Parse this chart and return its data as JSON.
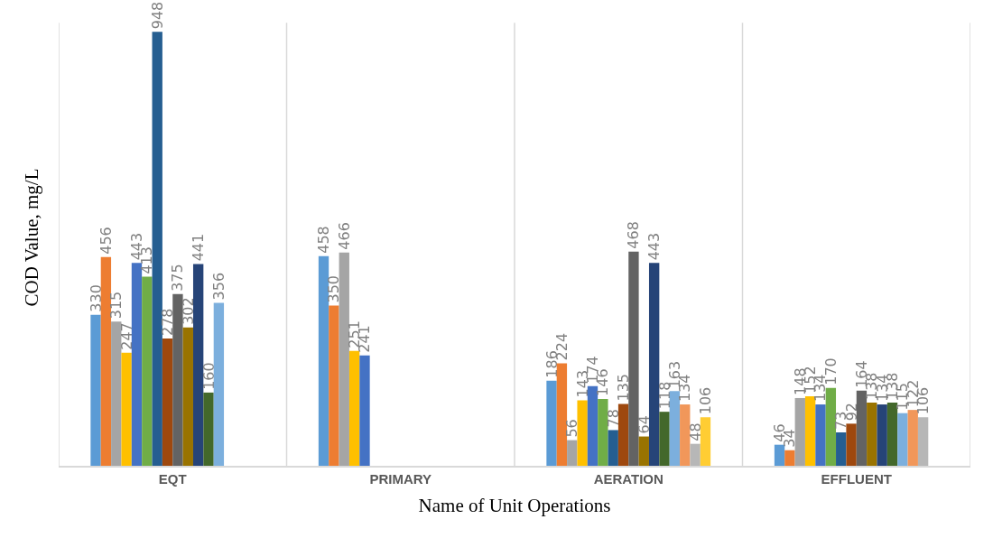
{
  "chart_data": {
    "type": "bar",
    "xlabel": "Name of Unit Operations",
    "ylabel": "COD Value, mg/L",
    "categories": [
      "EQT",
      "PRIMARY",
      "AERATION",
      "EFFLUENT"
    ],
    "series": [
      {
        "color": "#5b9bd5",
        "values": [
          330,
          458,
          186,
          46
        ]
      },
      {
        "color": "#ed7d31",
        "values": [
          456,
          350,
          224,
          34
        ]
      },
      {
        "color": "#a5a5a5",
        "values": [
          315,
          466,
          56,
          148
        ]
      },
      {
        "color": "#ffc000",
        "values": [
          247,
          251,
          143,
          152
        ]
      },
      {
        "color": "#4472c4",
        "values": [
          443,
          241,
          174,
          134
        ]
      },
      {
        "color": "#70ad47",
        "values": [
          413,
          null,
          146,
          170
        ]
      },
      {
        "color": "#255e91",
        "values": [
          948,
          null,
          78,
          73
        ]
      },
      {
        "color": "#9e480e",
        "values": [
          278,
          null,
          135,
          92
        ]
      },
      {
        "color": "#636363",
        "values": [
          375,
          null,
          468,
          164
        ]
      },
      {
        "color": "#997300",
        "values": [
          302,
          null,
          64,
          138
        ]
      },
      {
        "color": "#264478",
        "values": [
          441,
          null,
          443,
          134
        ]
      },
      {
        "color": "#43682b",
        "values": [
          160,
          null,
          118,
          138
        ]
      },
      {
        "color": "#7cafdd",
        "values": [
          356,
          null,
          163,
          115
        ]
      },
      {
        "color": "#f1975a",
        "values": [
          null,
          null,
          134,
          122
        ]
      },
      {
        "color": "#b7b7b7",
        "values": [
          null,
          null,
          48,
          106
        ]
      },
      {
        "color": "#ffcd33",
        "values": [
          null,
          null,
          106,
          null
        ]
      }
    ],
    "data_labels": true,
    "grid": "x"
  }
}
